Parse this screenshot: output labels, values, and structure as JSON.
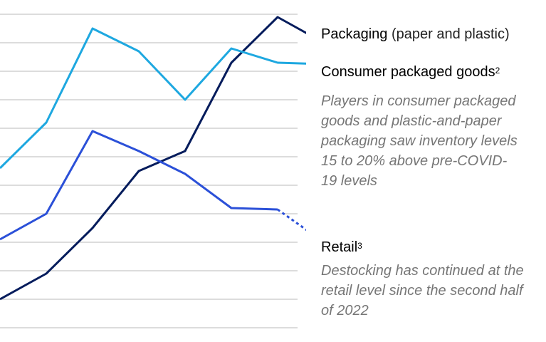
{
  "chart_data": {
    "type": "line",
    "title": "",
    "xlabel": "",
    "ylabel": "",
    "grid": true,
    "x": [
      0,
      1,
      2,
      3,
      4,
      5,
      6,
      7
    ],
    "ylim": [
      0,
      10.5
    ],
    "series": [
      {
        "name": "Packaging (paper and plastic)",
        "color": "#051c5c",
        "values": [
          0,
          0.9,
          2.5,
          4.5,
          5.2,
          8.3,
          9.9,
          9.0
        ],
        "projected": []
      },
      {
        "name": "Consumer packaged goods",
        "color": "#1ea8e0",
        "values": [
          4.6,
          6.2,
          9.5,
          8.7,
          7.0,
          8.8,
          8.3,
          8.25
        ],
        "projected": []
      },
      {
        "name": "Retail",
        "color": "#2b50d8",
        "values": [
          2.1,
          3.0,
          5.9,
          5.2,
          4.4,
          3.2,
          3.15,
          null
        ],
        "projected": [
          null,
          null,
          null,
          null,
          null,
          null,
          3.15,
          2.0
        ]
      }
    ]
  },
  "legend": {
    "packaging": {
      "main": "Packaging",
      "sub": " (paper and plastic)"
    },
    "cpg": {
      "main": "Consumer packaged goods",
      "sup": "2"
    },
    "cpg_note": "Players in consumer packaged goods and plastic-and-paper packaging saw inventory levels 15 to 20% above pre-COVID-19 levels",
    "retail": {
      "main": "Retail",
      "sup": "3"
    },
    "retail_note": "Destocking has continued at the retail level since the second half of 2022"
  }
}
